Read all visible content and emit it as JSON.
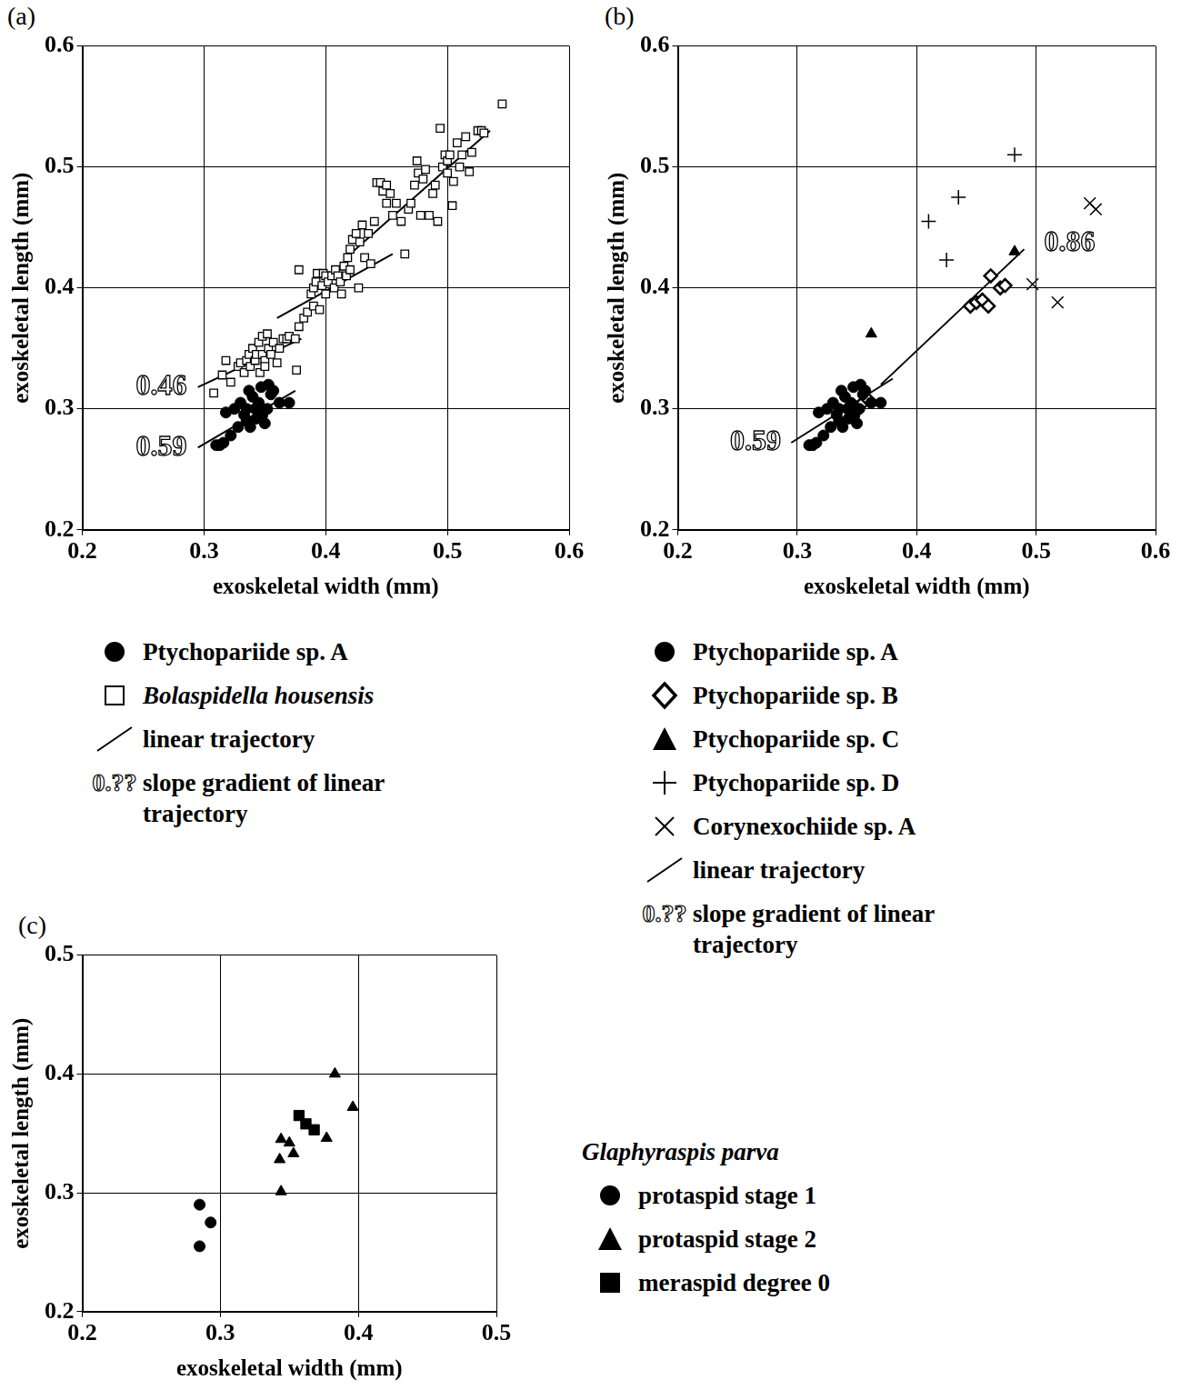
{
  "chart_data": [
    {
      "type": "scatter",
      "label": "(a)",
      "x_label": "exoskeletal width (mm)",
      "y_label": "exoskeletal length (mm)",
      "xlim": [
        0.2,
        0.6
      ],
      "ylim": [
        0.2,
        0.6
      ],
      "xticks": [
        0.2,
        0.3,
        0.4,
        0.5,
        0.6
      ],
      "yticks": [
        0.2,
        0.3,
        0.4,
        0.5,
        0.6
      ],
      "grid": true,
      "legend": "below",
      "series": [
        {
          "name": "Ptychopariide sp. A",
          "color": "#000000",
          "marker": "circle",
          "values": [
            [
              0.31,
              0.27
            ],
            [
              0.313,
              0.27
            ],
            [
              0.316,
              0.272
            ],
            [
              0.318,
              0.297
            ],
            [
              0.322,
              0.278
            ],
            [
              0.325,
              0.3
            ],
            [
              0.328,
              0.285
            ],
            [
              0.33,
              0.305
            ],
            [
              0.333,
              0.295
            ],
            [
              0.335,
              0.29
            ],
            [
              0.337,
              0.315
            ],
            [
              0.338,
              0.285
            ],
            [
              0.34,
              0.31
            ],
            [
              0.342,
              0.3
            ],
            [
              0.343,
              0.292
            ],
            [
              0.345,
              0.305
            ],
            [
              0.347,
              0.318
            ],
            [
              0.348,
              0.295
            ],
            [
              0.35,
              0.288
            ],
            [
              0.352,
              0.3
            ],
            [
              0.353,
              0.32
            ],
            [
              0.355,
              0.312
            ],
            [
              0.357,
              0.315
            ],
            [
              0.362,
              0.305
            ],
            [
              0.37,
              0.305
            ],
            [
              0.335,
              0.3
            ],
            [
              0.345,
              0.298
            ]
          ]
        },
        {
          "name": "Bolaspidella housensis",
          "color": "#000000",
          "marker": "square_open",
          "values": [
            [
              0.308,
              0.313
            ],
            [
              0.315,
              0.328
            ],
            [
              0.318,
              0.34
            ],
            [
              0.322,
              0.322
            ],
            [
              0.328,
              0.335
            ],
            [
              0.33,
              0.338
            ],
            [
              0.333,
              0.33
            ],
            [
              0.335,
              0.34
            ],
            [
              0.337,
              0.345
            ],
            [
              0.338,
              0.335
            ],
            [
              0.34,
              0.35
            ],
            [
              0.342,
              0.34
            ],
            [
              0.343,
              0.345
            ],
            [
              0.345,
              0.355
            ],
            [
              0.346,
              0.33
            ],
            [
              0.348,
              0.345
            ],
            [
              0.348,
              0.36
            ],
            [
              0.35,
              0.34
            ],
            [
              0.35,
              0.335
            ],
            [
              0.352,
              0.362
            ],
            [
              0.353,
              0.35
            ],
            [
              0.355,
              0.345
            ],
            [
              0.357,
              0.355
            ],
            [
              0.36,
              0.338
            ],
            [
              0.362,
              0.35
            ],
            [
              0.365,
              0.358
            ],
            [
              0.368,
              0.358
            ],
            [
              0.37,
              0.36
            ],
            [
              0.375,
              0.358
            ],
            [
              0.376,
              0.332
            ],
            [
              0.378,
              0.368
            ],
            [
              0.378,
              0.415
            ],
            [
              0.382,
              0.375
            ],
            [
              0.385,
              0.38
            ],
            [
              0.388,
              0.395
            ],
            [
              0.39,
              0.385
            ],
            [
              0.39,
              0.4
            ],
            [
              0.392,
              0.405
            ],
            [
              0.393,
              0.412
            ],
            [
              0.395,
              0.382
            ],
            [
              0.397,
              0.402
            ],
            [
              0.398,
              0.412
            ],
            [
              0.4,
              0.395
            ],
            [
              0.4,
              0.41
            ],
            [
              0.402,
              0.405
            ],
            [
              0.405,
              0.41
            ],
            [
              0.407,
              0.4
            ],
            [
              0.408,
              0.415
            ],
            [
              0.41,
              0.41
            ],
            [
              0.412,
              0.405
            ],
            [
              0.413,
              0.395
            ],
            [
              0.415,
              0.418
            ],
            [
              0.417,
              0.41
            ],
            [
              0.418,
              0.425
            ],
            [
              0.42,
              0.415
            ],
            [
              0.42,
              0.432
            ],
            [
              0.422,
              0.44
            ],
            [
              0.425,
              0.445
            ],
            [
              0.427,
              0.4
            ],
            [
              0.428,
              0.438
            ],
            [
              0.43,
              0.452
            ],
            [
              0.432,
              0.425
            ],
            [
              0.435,
              0.445
            ],
            [
              0.437,
              0.42
            ],
            [
              0.44,
              0.455
            ],
            [
              0.442,
              0.487
            ],
            [
              0.445,
              0.487
            ],
            [
              0.447,
              0.48
            ],
            [
              0.45,
              0.485
            ],
            [
              0.45,
              0.47
            ],
            [
              0.453,
              0.478
            ],
            [
              0.455,
              0.46
            ],
            [
              0.458,
              0.47
            ],
            [
              0.462,
              0.455
            ],
            [
              0.465,
              0.428
            ],
            [
              0.468,
              0.465
            ],
            [
              0.47,
              0.47
            ],
            [
              0.473,
              0.485
            ],
            [
              0.475,
              0.505
            ],
            [
              0.476,
              0.495
            ],
            [
              0.478,
              0.46
            ],
            [
              0.48,
              0.49
            ],
            [
              0.482,
              0.498
            ],
            [
              0.485,
              0.46
            ],
            [
              0.488,
              0.478
            ],
            [
              0.49,
              0.485
            ],
            [
              0.492,
              0.455
            ],
            [
              0.494,
              0.532
            ],
            [
              0.496,
              0.5
            ],
            [
              0.498,
              0.51
            ],
            [
              0.5,
              0.495
            ],
            [
              0.5,
              0.505
            ],
            [
              0.502,
              0.51
            ],
            [
              0.504,
              0.468
            ],
            [
              0.505,
              0.488
            ],
            [
              0.508,
              0.52
            ],
            [
              0.51,
              0.5
            ],
            [
              0.512,
              0.51
            ],
            [
              0.515,
              0.525
            ],
            [
              0.52,
              0.512
            ],
            [
              0.525,
              0.53
            ],
            [
              0.528,
              0.53
            ],
            [
              0.53,
              0.528
            ],
            [
              0.545,
              0.552
            ],
            [
              0.518,
              0.496
            ]
          ]
        },
        {
          "name": "linear trajectory",
          "type": "line",
          "color": "#000000",
          "line_style": "solid",
          "values": [
            [
              0.295,
              0.268
            ],
            [
              0.375,
              0.315
            ],
            null,
            [
              0.295,
              0.318
            ],
            [
              0.38,
              0.358
            ],
            null,
            [
              0.36,
              0.375
            ],
            [
              0.455,
              0.428
            ],
            null,
            [
              0.42,
              0.428
            ],
            [
              0.535,
              0.53
            ]
          ]
        }
      ],
      "annotations": [
        {
          "text": "0.46",
          "x": 0.265,
          "y": 0.318
        },
        {
          "text": "0.59",
          "x": 0.265,
          "y": 0.268
        }
      ],
      "annotation_legend": {
        "symbol": "0.??",
        "label": "slope gradient of linear trajectory"
      }
    },
    {
      "type": "scatter",
      "label": "(b)",
      "x_label": "exoskeletal width (mm)",
      "y_label": "exoskeletal length (mm)",
      "xlim": [
        0.2,
        0.6
      ],
      "ylim": [
        0.2,
        0.6
      ],
      "xticks": [
        0.2,
        0.3,
        0.4,
        0.5,
        0.6
      ],
      "yticks": [
        0.2,
        0.3,
        0.4,
        0.5,
        0.6
      ],
      "grid": true,
      "legend": "below",
      "series": [
        {
          "name": "Ptychopariide sp. A",
          "color": "#000000",
          "marker": "circle",
          "values": [
            [
              0.31,
              0.27
            ],
            [
              0.313,
              0.27
            ],
            [
              0.316,
              0.272
            ],
            [
              0.318,
              0.297
            ],
            [
              0.322,
              0.278
            ],
            [
              0.325,
              0.3
            ],
            [
              0.328,
              0.285
            ],
            [
              0.33,
              0.305
            ],
            [
              0.333,
              0.295
            ],
            [
              0.335,
              0.29
            ],
            [
              0.337,
              0.315
            ],
            [
              0.338,
              0.285
            ],
            [
              0.34,
              0.31
            ],
            [
              0.342,
              0.3
            ],
            [
              0.343,
              0.292
            ],
            [
              0.345,
              0.305
            ],
            [
              0.347,
              0.318
            ],
            [
              0.348,
              0.295
            ],
            [
              0.35,
              0.288
            ],
            [
              0.352,
              0.3
            ],
            [
              0.353,
              0.32
            ],
            [
              0.355,
              0.312
            ],
            [
              0.357,
              0.315
            ],
            [
              0.362,
              0.305
            ],
            [
              0.37,
              0.305
            ],
            [
              0.335,
              0.3
            ],
            [
              0.345,
              0.298
            ]
          ]
        },
        {
          "name": "Ptychopariide sp. B",
          "color": "#000000",
          "marker": "diamond_open",
          "values": [
            [
              0.355,
              0.305
            ],
            [
              0.36,
              0.307
            ],
            [
              0.445,
              0.385
            ],
            [
              0.45,
              0.388
            ],
            [
              0.455,
              0.39
            ],
            [
              0.46,
              0.385
            ],
            [
              0.462,
              0.41
            ],
            [
              0.47,
              0.4
            ],
            [
              0.474,
              0.402
            ]
          ]
        },
        {
          "name": "Ptychopariide sp. C",
          "color": "#000000",
          "marker": "triangle",
          "values": [
            [
              0.362,
              0.362
            ],
            [
              0.482,
              0.43
            ]
          ]
        },
        {
          "name": "Ptychopariide sp. D",
          "color": "#000000",
          "marker": "plus",
          "values": [
            [
              0.41,
              0.455
            ],
            [
              0.425,
              0.423
            ],
            [
              0.435,
              0.475
            ],
            [
              0.482,
              0.51
            ]
          ]
        },
        {
          "name": "Corynexochiide sp. A",
          "color": "#000000",
          "marker": "x",
          "values": [
            [
              0.497,
              0.403
            ],
            [
              0.518,
              0.388
            ],
            [
              0.545,
              0.47
            ],
            [
              0.55,
              0.465
            ]
          ]
        },
        {
          "name": "linear trajectory",
          "type": "line",
          "color": "#000000",
          "line_style": "solid",
          "values": [
            [
              0.295,
              0.272
            ],
            [
              0.38,
              0.325
            ],
            null,
            [
              0.37,
              0.32
            ],
            [
              0.49,
              0.432
            ]
          ]
        }
      ],
      "annotations": [
        {
          "text": "0.59",
          "x": 0.265,
          "y": 0.272
        },
        {
          "text": "0.86",
          "x": 0.528,
          "y": 0.437
        }
      ],
      "annotation_legend": {
        "symbol": "0.??",
        "label": "slope gradient of linear trajectory"
      }
    },
    {
      "type": "scatter",
      "label": "(c)",
      "x_label": "exoskeletal width (mm)",
      "y_label": "exoskeletal length (mm)",
      "xlim": [
        0.2,
        0.5
      ],
      "ylim": [
        0.2,
        0.5
      ],
      "xticks": [
        0.2,
        0.3,
        0.4,
        0.5
      ],
      "yticks": [
        0.2,
        0.3,
        0.4,
        0.5
      ],
      "grid": true,
      "legend": "right",
      "legend_title": "Glaphyraspis parva",
      "series": [
        {
          "name": "protaspid stage 1",
          "color": "#000000",
          "marker": "circle",
          "values": [
            [
              0.285,
              0.29
            ],
            [
              0.293,
              0.275
            ],
            [
              0.285,
              0.255
            ]
          ]
        },
        {
          "name": "protaspid stage 2",
          "color": "#000000",
          "marker": "triangle",
          "values": [
            [
              0.344,
              0.345
            ],
            [
              0.35,
              0.342
            ],
            [
              0.343,
              0.328
            ],
            [
              0.353,
              0.333
            ],
            [
              0.344,
              0.301
            ],
            [
              0.377,
              0.346
            ],
            [
              0.383,
              0.4
            ],
            [
              0.396,
              0.372
            ]
          ]
        },
        {
          "name": "meraspid degree 0",
          "color": "#000000",
          "marker": "square",
          "values": [
            [
              0.357,
              0.365
            ],
            [
              0.362,
              0.358
            ],
            [
              0.368,
              0.353
            ]
          ]
        }
      ]
    }
  ]
}
